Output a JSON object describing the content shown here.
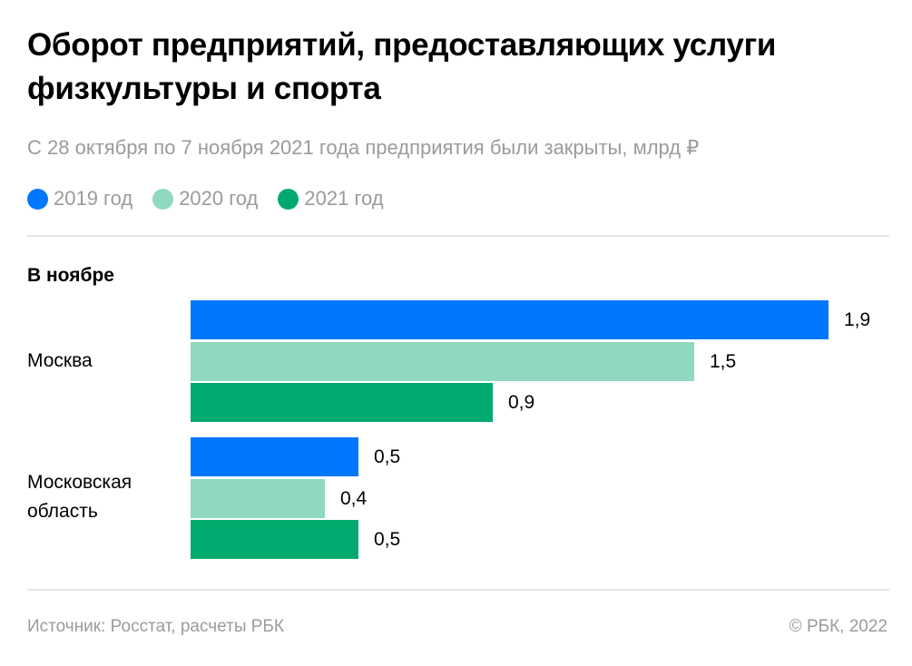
{
  "chart_data": {
    "type": "bar",
    "orientation": "horizontal",
    "title": "Оборот предприятий, предоставляющих услуги физкультуры и спорта",
    "subtitle": "С 28 октября по 7 ноября 2021 года предприятия были закрыты, млрд ₽",
    "section_label": "В ноябре",
    "categories": [
      "Москва",
      "Московская область"
    ],
    "series": [
      {
        "name": "2019 год",
        "color": "#0077ff",
        "values": [
          1.9,
          0.5
        ],
        "labels": [
          "1,9",
          "0,5"
        ]
      },
      {
        "name": "2020 год",
        "color": "#8fd9be",
        "values": [
          1.5,
          0.4
        ],
        "labels": [
          "1,5",
          "0,4"
        ]
      },
      {
        "name": "2021 год",
        "color": "#00aa6e",
        "values": [
          0.9,
          0.5
        ],
        "labels": [
          "0,9",
          "0,5"
        ]
      }
    ],
    "xlim": [
      0,
      1.9
    ],
    "grid": false,
    "legend": "top-left"
  },
  "footer": {
    "source": "Источник: Росстат, расчеты РБК",
    "copyright": "©  РБК, 2022"
  }
}
